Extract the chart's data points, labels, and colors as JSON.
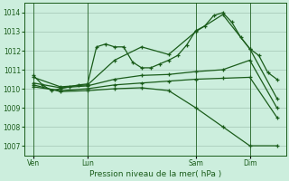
{
  "background_color": "#cceedd",
  "grid_color": "#aaccbb",
  "line_color": "#1a5c1a",
  "title": "Pression niveau de la mer( hPa )",
  "ylim": [
    1006.5,
    1014.5
  ],
  "yticks": [
    1007,
    1008,
    1009,
    1010,
    1011,
    1012,
    1013,
    1014
  ],
  "xlim": [
    -1,
    57
  ],
  "xlabel_tick_positions": [
    1,
    13,
    37,
    49
  ],
  "xlabel_ticks": [
    "Ven",
    "Lun",
    "Sam",
    "Dim"
  ],
  "vline_positions": [
    1,
    13,
    37,
    49
  ],
  "series": [
    {
      "x": [
        1,
        3,
        5,
        7,
        9,
        11,
        13,
        15,
        17,
        19,
        21,
        23,
        25,
        27,
        29,
        31,
        33,
        35,
        37,
        39,
        41,
        43,
        45,
        47,
        49,
        51,
        53,
        55
      ],
      "y": [
        1010.7,
        1010.2,
        1009.9,
        1010.0,
        1010.1,
        1010.2,
        1010.25,
        1012.2,
        1012.35,
        1012.2,
        1012.2,
        1011.4,
        1011.1,
        1011.1,
        1011.3,
        1011.5,
        1011.75,
        1012.3,
        1013.05,
        1013.3,
        1013.85,
        1014.0,
        1013.5,
        1012.7,
        1012.1,
        1011.75,
        1010.85,
        1010.5
      ],
      "marker": true
    },
    {
      "x": [
        1,
        7,
        13,
        19,
        25,
        31,
        37,
        43,
        49,
        55
      ],
      "y": [
        1010.6,
        1010.1,
        1010.2,
        1011.5,
        1012.2,
        1011.8,
        1013.0,
        1013.9,
        1012.1,
        1009.5
      ],
      "marker": true
    },
    {
      "x": [
        1,
        7,
        13,
        19,
        25,
        31,
        37,
        43,
        49,
        55
      ],
      "y": [
        1010.3,
        1010.05,
        1010.15,
        1010.5,
        1010.7,
        1010.75,
        1010.9,
        1011.0,
        1011.5,
        1009.0
      ],
      "marker": true
    },
    {
      "x": [
        1,
        7,
        13,
        19,
        25,
        31,
        37,
        43,
        49,
        55
      ],
      "y": [
        1010.2,
        1009.85,
        1009.9,
        1010.0,
        1010.05,
        1009.9,
        1009.0,
        1008.0,
        1007.0,
        1007.0
      ],
      "marker": true
    },
    {
      "x": [
        1,
        7,
        13,
        19,
        25,
        31,
        37,
        43,
        49,
        55
      ],
      "y": [
        1010.1,
        1009.9,
        1010.0,
        1010.2,
        1010.3,
        1010.4,
        1010.5,
        1010.55,
        1010.6,
        1008.5
      ],
      "marker": true
    }
  ]
}
